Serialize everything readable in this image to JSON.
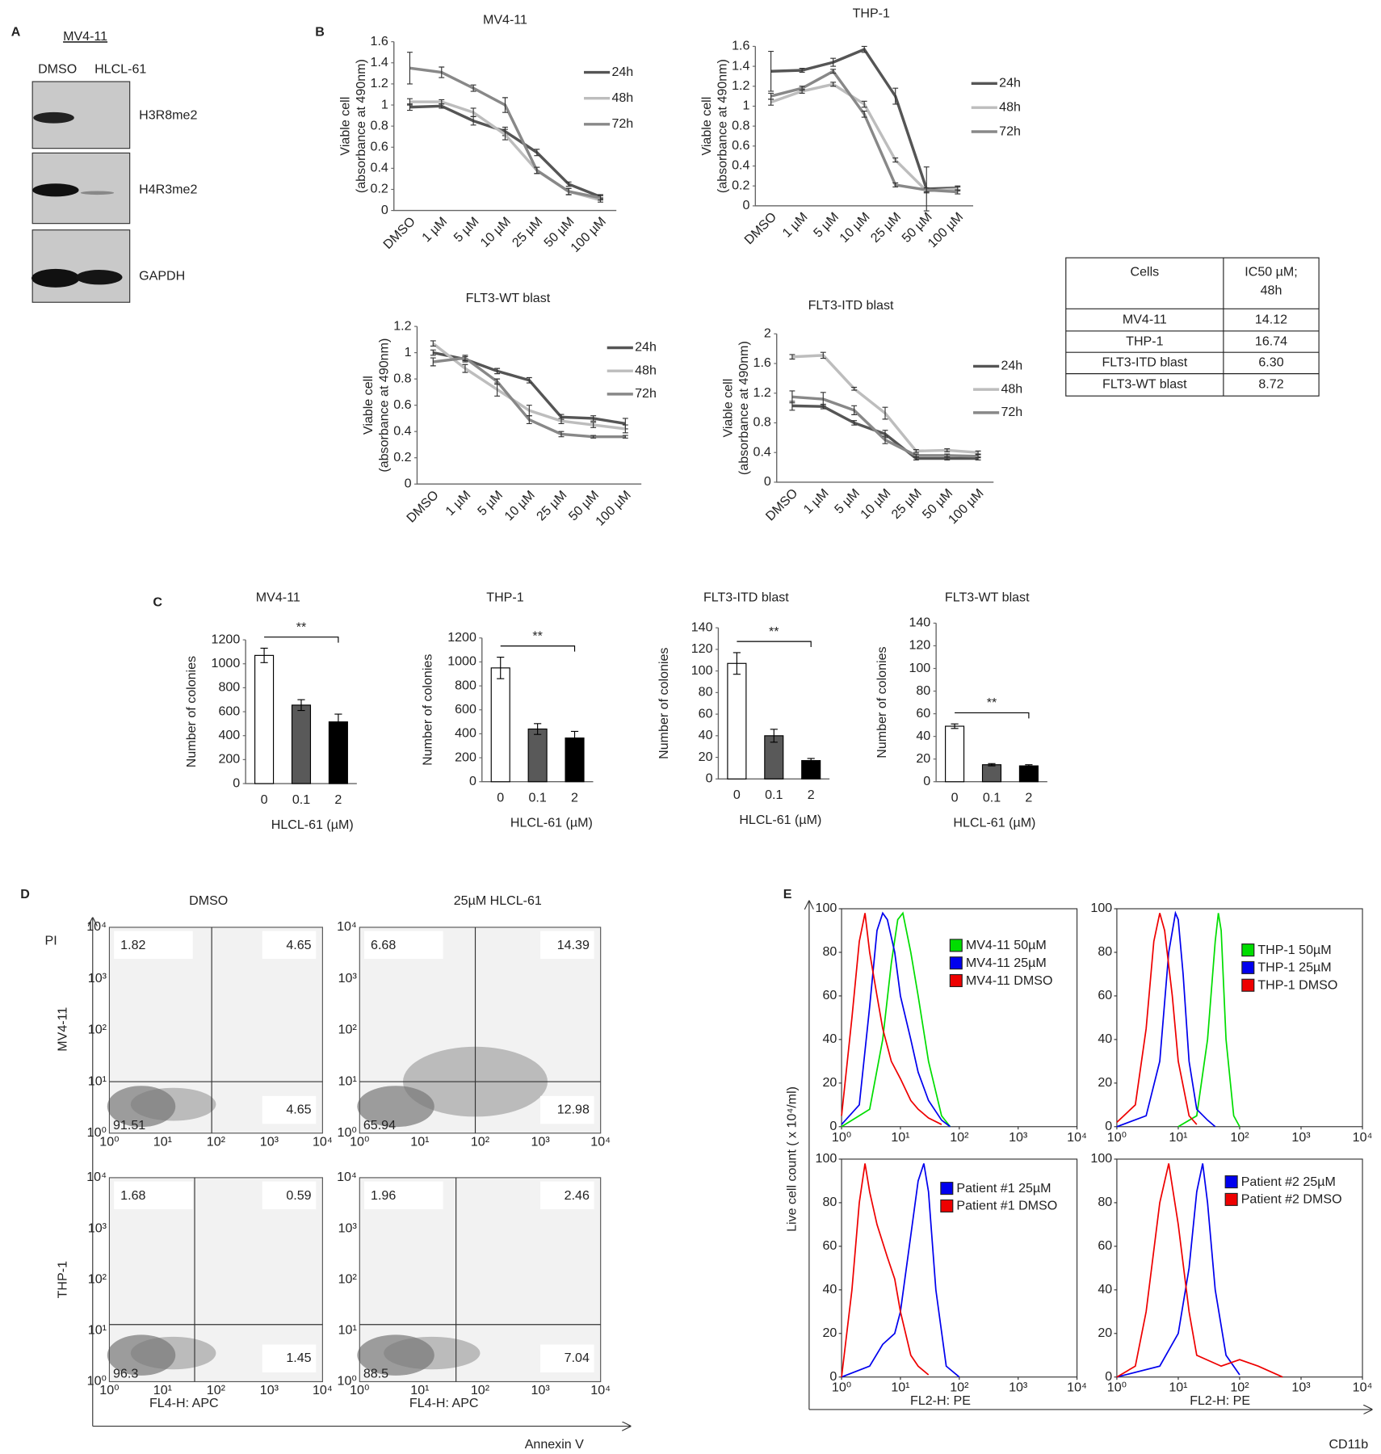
{
  "panel_labels": [
    "A",
    "B",
    "C",
    "D",
    "E"
  ],
  "blot": {
    "cell_line": "MV4-11",
    "lanes": [
      "DMSO",
      "HLCL-61"
    ],
    "bands": [
      "H3R8me2",
      "H4R3me2",
      "GAPDH"
    ]
  },
  "table": {
    "header": [
      "Cells",
      [
        "IC50 µM;",
        "48h"
      ]
    ],
    "rows": [
      [
        "MV4-11",
        "14.12"
      ],
      [
        "THP-1",
        "16.74"
      ],
      [
        "FLT3-ITD blast",
        "6.30"
      ],
      [
        "FLT3-WT blast",
        "8.72"
      ]
    ]
  },
  "chart_data": [
    {
      "type": "line",
      "title": "MV4-11",
      "ylabel": [
        "Viable cell",
        "(absorbance at 490nm)"
      ],
      "categories": [
        "DMSO",
        "1 µM",
        "5 µM",
        "10 µM",
        "25 µM",
        "50 µM",
        "100 µM"
      ],
      "ylim": [
        0,
        1.6
      ],
      "yticks": [
        0,
        0.2,
        0.4,
        0.6,
        0.8,
        1,
        1.2,
        1.4,
        1.6
      ],
      "series": [
        {
          "name": "24h",
          "color": "#555555",
          "values": [
            0.98,
            0.99,
            0.85,
            0.75,
            0.55,
            0.25,
            0.13
          ],
          "errors": [
            0.03,
            0.02,
            0.04,
            0.04,
            0.03,
            0.02,
            0.02
          ]
        },
        {
          "name": "48h",
          "color": "#bdbdbd",
          "values": [
            1.03,
            1.03,
            0.93,
            0.72,
            0.38,
            0.18,
            0.1
          ],
          "errors": [
            0.03,
            0.02,
            0.04,
            0.05,
            0.03,
            0.03,
            0.02
          ]
        },
        {
          "name": "72h",
          "color": "#888888",
          "values": [
            1.35,
            1.31,
            1.16,
            1.0,
            0.38,
            0.18,
            0.12
          ],
          "errors": [
            0.15,
            0.05,
            0.03,
            0.07,
            0.03,
            0.03,
            0.02
          ]
        }
      ]
    },
    {
      "type": "line",
      "title": "THP-1",
      "ylabel": [
        "Viable cell",
        "(absorbance at 490nm)"
      ],
      "categories": [
        "DMSO",
        "1 µM",
        "5 µM",
        "10 µM",
        "25 µM",
        "50 µM",
        "100 µM"
      ],
      "ylim": [
        0,
        1.6
      ],
      "yticks": [
        0,
        0.2,
        0.4,
        0.6,
        0.8,
        1,
        1.2,
        1.4,
        1.6
      ],
      "series": [
        {
          "name": "24h",
          "color": "#555555",
          "values": [
            1.35,
            1.36,
            1.44,
            1.57,
            1.1,
            0.17,
            0.18
          ],
          "errors": [
            0.2,
            0.02,
            0.04,
            0.03,
            0.08,
            0.22,
            0.02
          ]
        },
        {
          "name": "48h",
          "color": "#bdbdbd",
          "values": [
            1.04,
            1.15,
            1.22,
            1.02,
            0.46,
            0.15,
            0.17
          ],
          "errors": [
            0.03,
            0.02,
            0.02,
            0.03,
            0.02,
            0.02,
            0.02
          ]
        },
        {
          "name": "72h",
          "color": "#888888",
          "values": [
            1.1,
            1.18,
            1.35,
            0.92,
            0.21,
            0.16,
            0.14
          ],
          "errors": [
            0.03,
            0.02,
            0.02,
            0.03,
            0.02,
            0.02,
            0.02
          ]
        }
      ]
    },
    {
      "type": "line",
      "title": "FLT3-WT blast",
      "ylabel": [
        "Viable cell",
        "(absorbance at 490nm)"
      ],
      "categories": [
        "DMSO",
        "1 µM",
        "5 µM",
        "10 µM",
        "25 µM",
        "50 µM",
        "100 µM"
      ],
      "ylim": [
        0,
        1.2
      ],
      "yticks": [
        0,
        0.2,
        0.4,
        0.6,
        0.8,
        1,
        1.2
      ],
      "series": [
        {
          "name": "24h",
          "color": "#555555",
          "values": [
            1.0,
            0.95,
            0.86,
            0.79,
            0.51,
            0.5,
            0.46
          ],
          "errors": [
            0.02,
            0.02,
            0.02,
            0.02,
            0.02,
            0.02,
            0.04
          ]
        },
        {
          "name": "48h",
          "color": "#bdbdbd",
          "values": [
            1.07,
            0.88,
            0.72,
            0.56,
            0.48,
            0.45,
            0.42
          ],
          "errors": [
            0.02,
            0.03,
            0.05,
            0.04,
            0.02,
            0.02,
            0.03
          ]
        },
        {
          "name": "72h",
          "color": "#888888",
          "values": [
            0.93,
            0.96,
            0.78,
            0.49,
            0.38,
            0.36,
            0.36
          ],
          "errors": [
            0.03,
            0.02,
            0.02,
            0.03,
            0.02,
            0.01,
            0.01
          ]
        }
      ]
    },
    {
      "type": "line",
      "title": "FLT3-ITD blast",
      "ylabel": [
        "Viable cell",
        "(absorbance at 490nm)"
      ],
      "categories": [
        "DMSO",
        "1 µM",
        "5 µM",
        "10 µM",
        "25 µM",
        "50 µM",
        "100 µM"
      ],
      "ylim": [
        0,
        2
      ],
      "yticks": [
        0,
        0.4,
        0.8,
        1.2,
        1.6,
        2
      ],
      "series": [
        {
          "name": "24h",
          "color": "#555555",
          "values": [
            1.03,
            1.02,
            0.8,
            0.65,
            0.32,
            0.32,
            0.32
          ],
          "errors": [
            0.06,
            0.03,
            0.03,
            0.05,
            0.02,
            0.02,
            0.02
          ]
        },
        {
          "name": "48h",
          "color": "#bdbdbd",
          "values": [
            1.69,
            1.71,
            1.26,
            0.93,
            0.42,
            0.43,
            0.4
          ],
          "errors": [
            0.03,
            0.04,
            0.02,
            0.08,
            0.02,
            0.02,
            0.02
          ]
        },
        {
          "name": "72h",
          "color": "#888888",
          "values": [
            1.15,
            1.12,
            0.97,
            0.57,
            0.36,
            0.36,
            0.35
          ],
          "errors": [
            0.08,
            0.09,
            0.06,
            0.05,
            0.02,
            0.02,
            0.02
          ]
        }
      ]
    },
    {
      "type": "bar",
      "title": "MV4-11",
      "ylabel": "Number of colonies",
      "xlabel": "HLCL-61 (µM)",
      "annotation": "**",
      "categories": [
        "0",
        "0.1",
        "2"
      ],
      "values": [
        1070,
        655,
        515
      ],
      "errors": [
        60,
        45,
        65
      ],
      "colors": [
        "#ffffff",
        "#595959",
        "#000000"
      ],
      "ylim": [
        0,
        1200
      ],
      "yticks": [
        0,
        200,
        400,
        600,
        800,
        1000,
        1200
      ]
    },
    {
      "type": "bar",
      "title": "THP-1",
      "ylabel": "Number of colonies",
      "xlabel": "HLCL-61 (µM)",
      "annotation": "**",
      "categories": [
        "0",
        "0.1",
        "2"
      ],
      "values": [
        950,
        440,
        365
      ],
      "errors": [
        90,
        45,
        55
      ],
      "colors": [
        "#ffffff",
        "#595959",
        "#000000"
      ],
      "ylim": [
        0,
        1200
      ],
      "yticks": [
        0,
        200,
        400,
        600,
        800,
        1000,
        1200
      ]
    },
    {
      "type": "bar",
      "title": "FLT3-ITD blast",
      "ylabel": "Number of colonies",
      "xlabel": "HLCL-61 (µM)",
      "annotation": "**",
      "categories": [
        "0",
        "0.1",
        "2"
      ],
      "values": [
        107,
        40,
        17
      ],
      "errors": [
        10,
        6,
        2
      ],
      "colors": [
        "#ffffff",
        "#595959",
        "#000000"
      ],
      "ylim": [
        0,
        140
      ],
      "yticks": [
        0,
        20,
        40,
        60,
        80,
        100,
        120,
        140
      ]
    },
    {
      "type": "bar",
      "title": "FLT3-WT blast",
      "ylabel": "Number of colonies",
      "xlabel": "HLCL-61 (µM)",
      "annotation": "**",
      "categories": [
        "0",
        "0.1",
        "2"
      ],
      "values": [
        49,
        15,
        14
      ],
      "errors": [
        2,
        1,
        1
      ],
      "colors": [
        "#ffffff",
        "#595959",
        "#000000"
      ],
      "ylim": [
        0,
        140
      ],
      "yticks": [
        0,
        20,
        40,
        60,
        80,
        100,
        120,
        140
      ]
    },
    {
      "type": "histogram-line",
      "log_x": true,
      "xlim": [
        1,
        10000
      ],
      "ylim": [
        0,
        100
      ],
      "xticks": [
        {
          "value": 1,
          "label": "10⁰"
        },
        {
          "value": 10,
          "label": "10¹"
        },
        {
          "value": 100,
          "label": "10²"
        },
        {
          "value": 1000,
          "label": "10³"
        },
        {
          "value": 10000,
          "label": "10⁴"
        }
      ],
      "yticks": [
        0,
        20,
        40,
        60,
        80,
        100
      ],
      "series": [
        {
          "name": "MV4-11 50µM",
          "color": "#00dd00",
          "x": [
            1,
            3,
            5,
            7,
            9,
            11,
            15,
            20,
            30,
            50,
            70
          ],
          "values": [
            0,
            8,
            40,
            75,
            95,
            98,
            80,
            60,
            30,
            5,
            0
          ]
        },
        {
          "name": "MV4-11 25µM",
          "color": "#0000ee",
          "x": [
            1,
            2,
            3,
            4,
            5,
            6,
            8,
            10,
            15,
            20,
            30,
            50,
            70
          ],
          "values": [
            1,
            10,
            55,
            90,
            98,
            95,
            80,
            60,
            40,
            25,
            12,
            3,
            0
          ]
        },
        {
          "name": "MV4-11 DMSO",
          "color": "#ee0000",
          "x": [
            1,
            1.5,
            2,
            2.5,
            3,
            4,
            5,
            7,
            10,
            15,
            20,
            30,
            50
          ],
          "values": [
            5,
            50,
            85,
            98,
            80,
            60,
            45,
            30,
            22,
            12,
            8,
            4,
            1
          ]
        }
      ]
    },
    {
      "type": "histogram-line",
      "log_x": true,
      "xlim": [
        1,
        10000
      ],
      "ylim": [
        0,
        100
      ],
      "xticks": [
        {
          "value": 1,
          "label": "10⁰"
        },
        {
          "value": 10,
          "label": "10¹"
        },
        {
          "value": 100,
          "label": "10²"
        },
        {
          "value": 1000,
          "label": "10³"
        },
        {
          "value": 10000,
          "label": "10⁴"
        }
      ],
      "yticks": [
        0,
        20,
        40,
        60,
        80,
        100
      ],
      "series": [
        {
          "name": "THP-1 50µM",
          "color": "#00dd00",
          "x": [
            10,
            20,
            30,
            40,
            45,
            50,
            60,
            80,
            100
          ],
          "values": [
            0,
            5,
            40,
            85,
            98,
            90,
            40,
            5,
            0
          ]
        },
        {
          "name": "THP-1 25µM",
          "color": "#0000ee",
          "x": [
            1,
            3,
            5,
            7,
            9,
            10,
            12,
            15,
            20,
            30,
            40
          ],
          "values": [
            0,
            5,
            30,
            80,
            98,
            95,
            70,
            30,
            8,
            3,
            0
          ]
        },
        {
          "name": "THP-1 DMSO",
          "color": "#ee0000",
          "x": [
            1,
            2,
            3,
            4,
            5,
            6,
            8,
            10,
            15,
            20
          ],
          "values": [
            2,
            10,
            45,
            85,
            98,
            90,
            60,
            30,
            5,
            1
          ]
        }
      ]
    },
    {
      "type": "histogram-line",
      "log_x": true,
      "xlim": [
        1,
        10000
      ],
      "ylim": [
        0,
        100
      ],
      "axis_label": "FL2-H: PE",
      "xticks": [
        {
          "value": 1,
          "label": "10⁰"
        },
        {
          "value": 10,
          "label": "10¹"
        },
        {
          "value": 100,
          "label": "10²"
        },
        {
          "value": 1000,
          "label": "10³"
        },
        {
          "value": 10000,
          "label": "10⁴"
        }
      ],
      "yticks": [
        0,
        20,
        40,
        60,
        80,
        100
      ],
      "series": [
        {
          "name": "Patient #1 25µM",
          "color": "#0000ee",
          "x": [
            1,
            3,
            5,
            8,
            10,
            15,
            20,
            25,
            30,
            40,
            60,
            100
          ],
          "values": [
            0,
            5,
            15,
            20,
            30,
            65,
            90,
            98,
            85,
            40,
            5,
            0
          ]
        },
        {
          "name": "Patient #1 DMSO",
          "color": "#ee0000",
          "x": [
            1,
            1.5,
            2,
            2.5,
            3,
            4,
            6,
            8,
            10,
            15,
            20,
            30
          ],
          "values": [
            0,
            40,
            80,
            98,
            85,
            70,
            55,
            45,
            30,
            10,
            5,
            1
          ]
        }
      ]
    },
    {
      "type": "histogram-line",
      "log_x": true,
      "xlim": [
        1,
        10000
      ],
      "ylim": [
        0,
        100
      ],
      "axis_label": "FL2-H: PE",
      "xticks": [
        {
          "value": 1,
          "label": "10⁰"
        },
        {
          "value": 10,
          "label": "10¹"
        },
        {
          "value": 100,
          "label": "10²"
        },
        {
          "value": 1000,
          "label": "10³"
        },
        {
          "value": 10000,
          "label": "10⁴"
        }
      ],
      "yticks": [
        0,
        20,
        40,
        60,
        80,
        100
      ],
      "series": [
        {
          "name": "Patient #2 25µM",
          "color": "#0000ee",
          "x": [
            1,
            5,
            10,
            15,
            20,
            25,
            30,
            40,
            60,
            100
          ],
          "values": [
            0,
            5,
            20,
            50,
            85,
            98,
            80,
            40,
            10,
            1
          ]
        },
        {
          "name": "Patient #2 DMSO",
          "color": "#ee0000",
          "x": [
            1,
            2,
            3,
            5,
            7,
            10,
            15,
            20,
            50,
            100,
            200,
            500
          ],
          "values": [
            0,
            5,
            30,
            80,
            98,
            70,
            30,
            10,
            5,
            8,
            5,
            0
          ]
        }
      ]
    }
  ],
  "panel_e": {
    "ylabel": "Live cell count ( x 10⁴/ml)",
    "xlabel": "CD11b"
  },
  "flow": {
    "columns": [
      "DMSO",
      "25µM HLCL-61"
    ],
    "rows": [
      "MV4-11",
      "THP-1"
    ],
    "y_label": "PI",
    "x_label": "Annexin V",
    "channel_label": "FL4-H: APC",
    "ticks": [
      "10⁰",
      "10¹",
      "10²",
      "10³",
      "10⁴"
    ],
    "plots": [
      {
        "ul": 1.82,
        "ur": 4.65,
        "lr": 4.65,
        "ll": 91.51
      },
      {
        "ul": 6.68,
        "ur": 14.39,
        "lr": 12.98,
        "ll": 65.94
      },
      {
        "ul": 1.68,
        "ur": 0.59,
        "lr": 1.45,
        "ll": 96.3
      },
      {
        "ul": 1.96,
        "ur": 2.46,
        "lr": 7.04,
        "ll": 88.5
      }
    ]
  }
}
